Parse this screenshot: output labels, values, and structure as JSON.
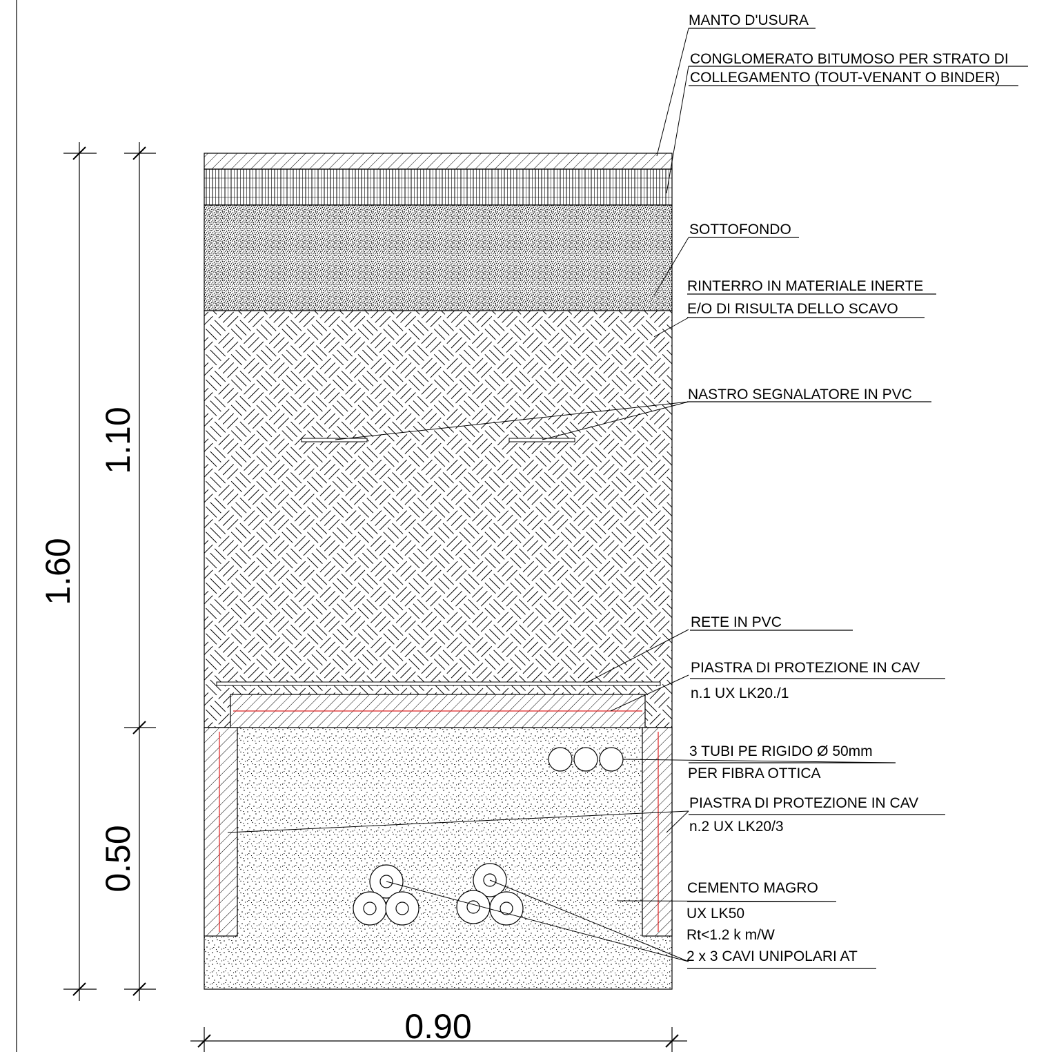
{
  "labels": {
    "manto_usura": "MANTO D'USURA",
    "conglomerato_1": "CONGLOMERATO BITUMOSO PER STRATO DI",
    "conglomerato_2": "COLLEGAMENTO (TOUT-VENANT O BINDER)",
    "sottofondo": "SOTTOFONDO",
    "rinterro_1": "RINTERRO IN MATERIALE INERTE",
    "rinterro_2": "E/O DI RISULTA DELLO SCAVO",
    "nastro": "NASTRO SEGNALATORE IN PVC",
    "rete": "RETE IN PVC",
    "piastra1_1": "PIASTRA DI PROTEZIONE IN CAV",
    "piastra1_2": "n.1 UX LK20./1",
    "tubi_1": "3 TUBI PE RIGIDO Ø 50mm",
    "tubi_2": "PER FIBRA OTTICA",
    "piastra2_1": "PIASTRA DI PROTEZIONE IN CAV",
    "piastra2_2": "n.2 UX LK20/3",
    "cemento_1": "CEMENTO MAGRO",
    "cemento_2": "UX LK50",
    "cemento_3": "Rt<1.2 k m/W",
    "cavi": "2 x 3 CAVI UNIPOLARI AT"
  },
  "dimensions": {
    "total_depth": "1.60",
    "upper_depth": "1.10",
    "lower_depth": "0.50",
    "width": "0.90"
  },
  "colors": {
    "line": "#000000",
    "rebar": "#e02020",
    "background": "#ffffff"
  }
}
